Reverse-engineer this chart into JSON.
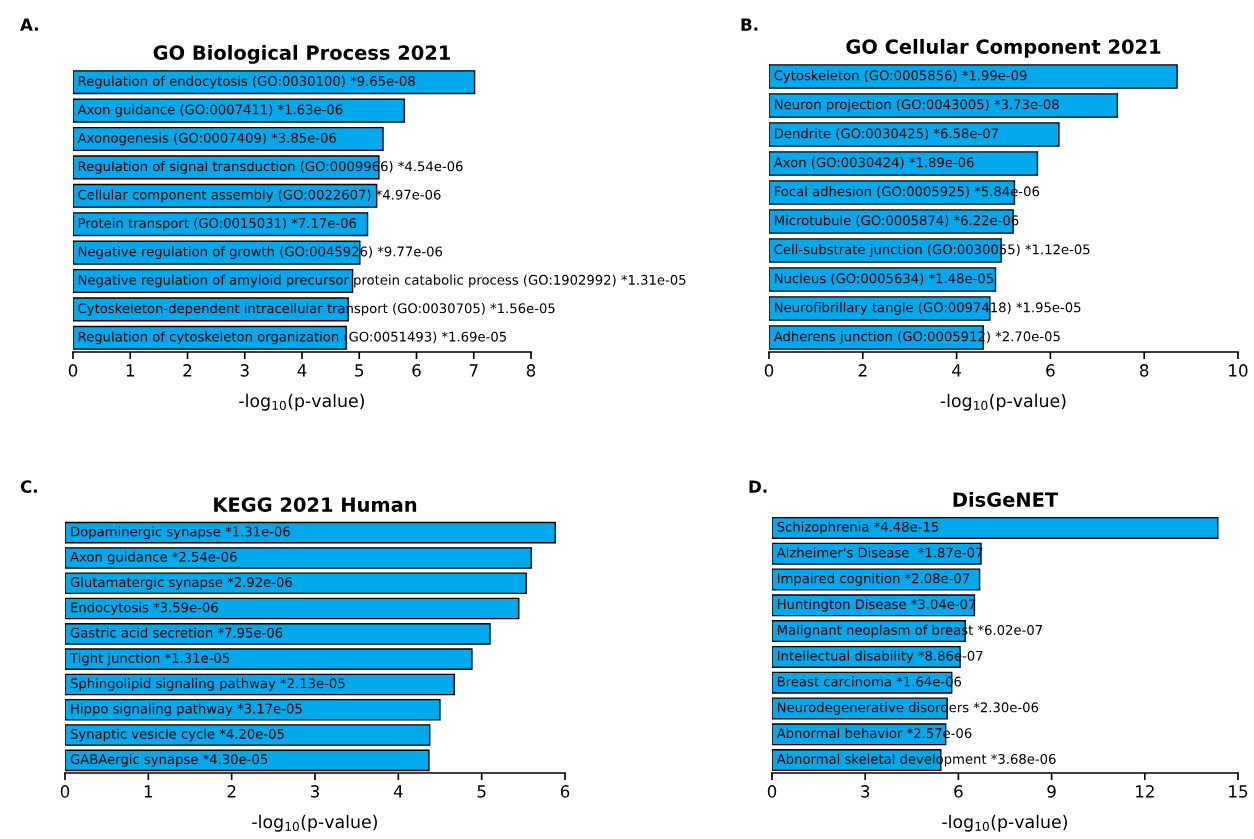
{
  "chart_data": [
    {
      "type": "bar",
      "orientation": "horizontal",
      "title": "GO Biological Process 2021",
      "xlabel": "-log$_{10}$(p-value)",
      "annotations": [
        "A."
      ],
      "color": "#00a9ec",
      "tick_labels": "x",
      "grid": false,
      "legend": false,
      "xlim": [
        0,
        8
      ],
      "xticks": [
        0,
        1,
        2,
        3,
        4,
        5,
        6,
        7,
        8
      ],
      "categories": [
        "Regulation of endocytosis (GO:0030100) *9.65e-08",
        "Axon guidance (GO:0007411) *1.63e-06",
        "Axonogenesis (GO:0007409) *3.85e-06",
        "Regulation of signal transduction (GO:0009966) *4.54e-06",
        "Cellular component assembly (GO:0022607) *4.97e-06",
        "Protein transport (GO:0015031) *7.17e-06",
        "Negative regulation of growth (GO:0045926) *9.77e-06",
        "Negative regulation of amyloid precursor protein catabolic process (GO:1902992) *1.31e-05",
        "Cytoskeleton-dependent intracellular transport (GO:0030705) *1.56e-05",
        "Regulation of cytoskeleton organization (GO:0051493) *1.69e-05"
      ],
      "values": [
        7.015,
        5.788,
        5.415,
        5.343,
        5.304,
        5.145,
        5.01,
        4.883,
        4.807,
        4.772
      ]
    },
    {
      "type": "bar",
      "orientation": "horizontal",
      "title": "GO Cellular Component 2021",
      "xlabel": "-log$_{10}$(p-value)",
      "annotations": [
        "B."
      ],
      "color": "#00a9ec",
      "tick_labels": "x",
      "grid": false,
      "legend": false,
      "xlim": [
        0,
        10
      ],
      "xticks": [
        0,
        2,
        4,
        6,
        8,
        10
      ],
      "categories": [
        "Cytoskeleton (GO:0005856) *1.99e-09",
        "Neuron projection (GO:0043005) *3.73e-08",
        "Dendrite (GO:0030425) *6.58e-07",
        "Axon (GO:0030424) *1.89e-06",
        "Focal adhesion (GO:0005925) *5.84e-06",
        "Microtubule (GO:0005874) *6.22e-06",
        "Cell-substrate junction (GO:0030055) *1.12e-05",
        "Nucleus (GO:0005634) *1.48e-05",
        "Neurofibrillary tangle (GO:0097418) *1.95e-05",
        "Adherens junction (GO:0005912) *2.70e-05"
      ],
      "values": [
        8.701,
        7.428,
        6.182,
        5.724,
        5.234,
        5.206,
        4.951,
        4.83,
        4.71,
        4.569
      ]
    },
    {
      "type": "bar",
      "orientation": "horizontal",
      "title": "KEGG 2021 Human",
      "xlabel": "-log$_{10}$(p-value)",
      "annotations": [
        "C."
      ],
      "color": "#00a9ec",
      "tick_labels": "x",
      "grid": false,
      "legend": false,
      "xlim": [
        0,
        6
      ],
      "xticks": [
        0,
        1,
        2,
        3,
        4,
        5,
        6
      ],
      "categories": [
        "Dopaminergic synapse *1.31e-06",
        "Axon guidance *2.54e-06",
        "Glutamatergic synapse *2.92e-06",
        "Endocytosis *3.59e-06",
        "Gastric acid secretion *7.95e-06",
        "Tight junction *1.31e-05",
        "Sphingolipid signaling pathway *2.13e-05",
        "Hippo signaling pathway *3.17e-05",
        "Synaptic vesicle cycle *4.20e-05",
        "GABAergic synapse *4.30e-05"
      ],
      "values": [
        5.883,
        5.595,
        5.535,
        5.445,
        5.1,
        4.883,
        4.672,
        4.499,
        4.377,
        4.367
      ]
    },
    {
      "type": "bar",
      "orientation": "horizontal",
      "title": "DisGeNET",
      "xlabel": "-log$_{10}$(p-value)",
      "annotations": [
        "D."
      ],
      "color": "#00a9ec",
      "tick_labels": "x",
      "grid": false,
      "legend": false,
      "xlim": [
        0,
        15
      ],
      "xticks": [
        0,
        3,
        6,
        9,
        12,
        15
      ],
      "categories": [
        "Schizophrenia *4.48e-15",
        "Alzheimer's Disease  *1.87e-07",
        "Impaired cognition *2.08e-07",
        "Huntington Disease *3.04e-07",
        "Malignant neoplasm of breast *6.02e-07",
        "Intellectual disability *8.86e-07",
        "Breast carcinoma *1.64e-06",
        "Neurodegenerative disorders *2.30e-06",
        "Abnormal behavior *2.57e-06",
        "Abnormal skeletal development *3.68e-06"
      ],
      "values": [
        14.349,
        6.728,
        6.682,
        6.517,
        6.22,
        6.053,
        5.785,
        5.638,
        5.59,
        5.434
      ]
    }
  ]
}
